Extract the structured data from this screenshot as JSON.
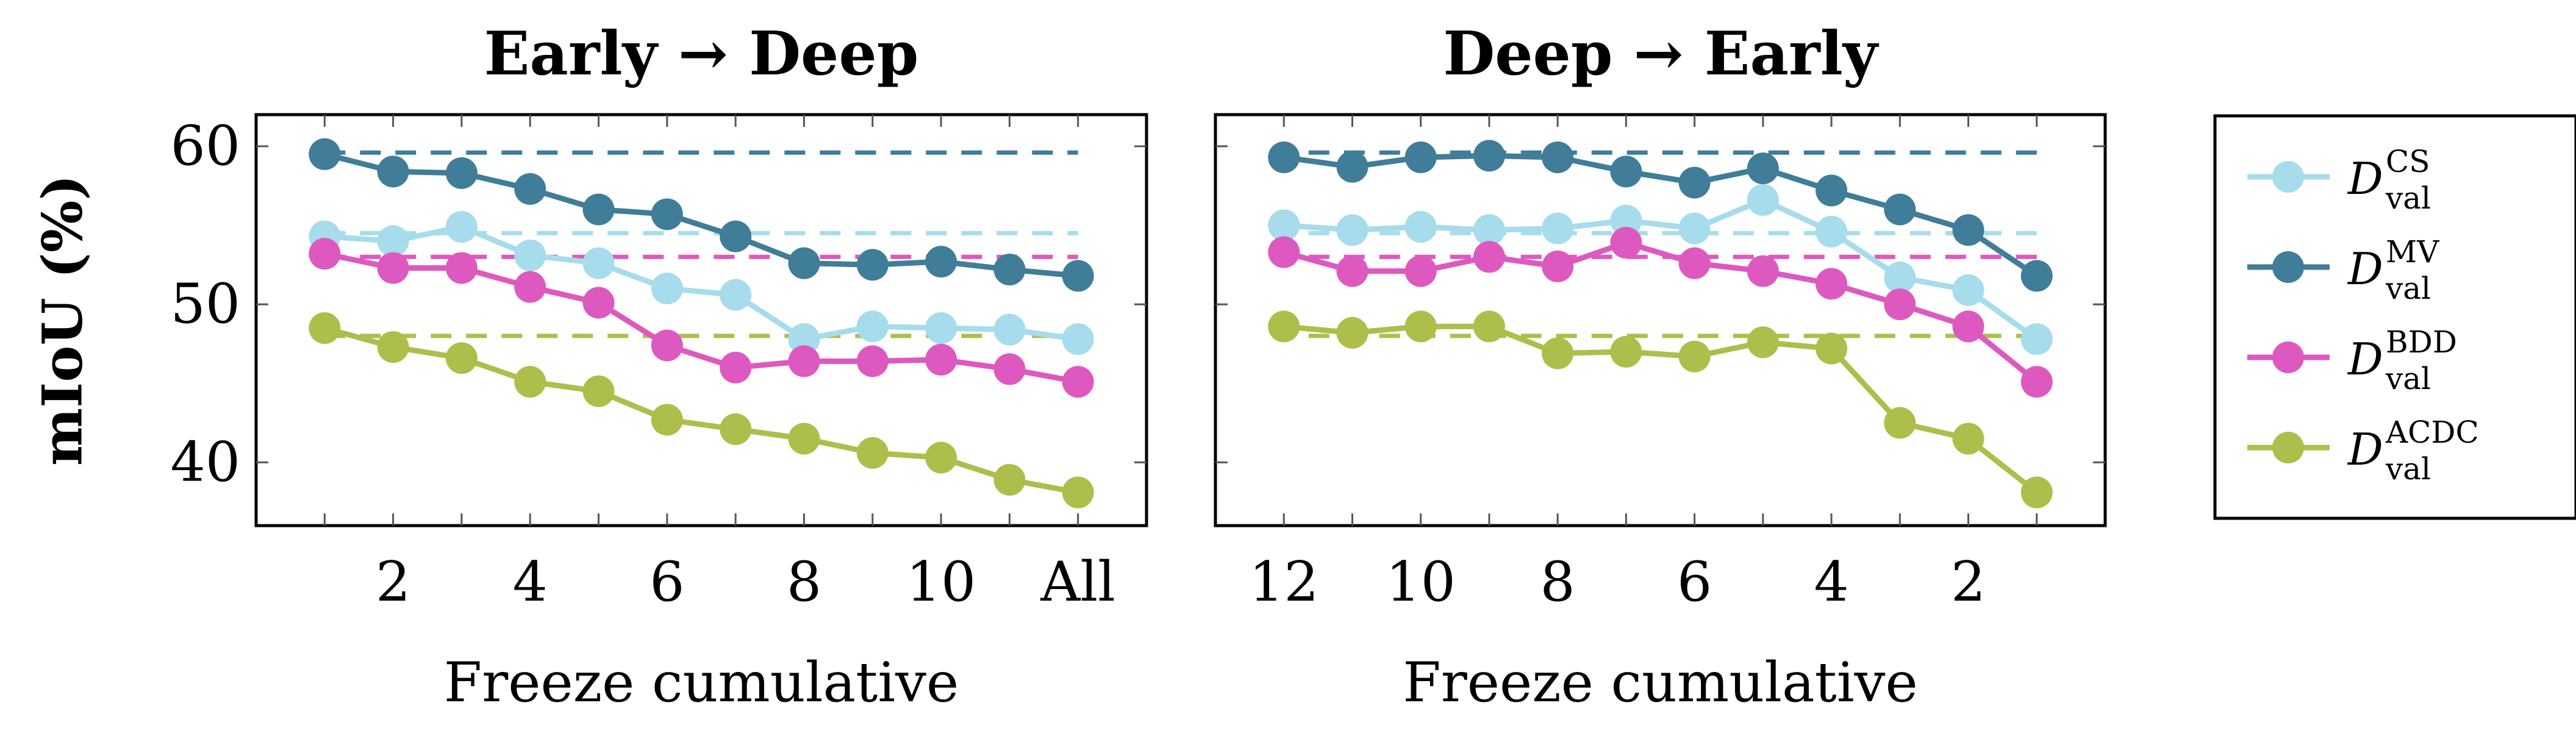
{
  "chart_data": [
    {
      "type": "line",
      "title": "Early → Deep",
      "xlabel": "Freeze cumulative",
      "ylabel": "mIoU (%)",
      "x_tick_labels": [
        "2",
        "4",
        "6",
        "8",
        "10",
        "All"
      ],
      "x": [
        1,
        2,
        3,
        4,
        5,
        6,
        7,
        8,
        9,
        10,
        11,
        12
      ],
      "xlim": [
        0,
        13
      ],
      "ylim": [
        36,
        62
      ],
      "y_ticks": [
        40,
        50,
        60
      ],
      "grid": false,
      "series": [
        {
          "name": "D_val^CS",
          "color": "#a6dceb",
          "baseline": 54.5,
          "values": [
            54.3,
            54.0,
            54.9,
            53.1,
            52.6,
            51.0,
            50.6,
            47.8,
            48.6,
            48.5,
            48.4,
            47.8
          ]
        },
        {
          "name": "D_val^MV",
          "color": "#3f7d99",
          "baseline": 59.6,
          "values": [
            59.5,
            58.4,
            58.3,
            57.3,
            56.0,
            55.7,
            54.3,
            52.6,
            52.5,
            52.7,
            52.2,
            51.8
          ]
        },
        {
          "name": "D_val^BDD",
          "color": "#de59bf",
          "baseline": 53.0,
          "values": [
            53.2,
            52.3,
            52.3,
            51.1,
            50.1,
            47.4,
            46.0,
            46.4,
            46.4,
            46.5,
            45.9,
            45.1
          ]
        },
        {
          "name": "D_val^ACDC",
          "color": "#adbf4a",
          "baseline": 48.0,
          "values": [
            48.5,
            47.3,
            46.6,
            45.1,
            44.5,
            42.7,
            42.1,
            41.5,
            40.6,
            40.3,
            38.9,
            38.1
          ]
        }
      ]
    },
    {
      "type": "line",
      "title": "Deep → Early",
      "xlabel": "Freeze cumulative",
      "ylabel": "",
      "x_tick_labels": [
        "12",
        "10",
        "8",
        "6",
        "4",
        "2"
      ],
      "x": [
        12,
        11,
        10,
        9,
        8,
        7,
        6,
        5,
        4,
        3,
        2,
        1
      ],
      "xlim": [
        13,
        0
      ],
      "ylim": [
        36,
        62
      ],
      "y_ticks": [
        40,
        50,
        60
      ],
      "grid": false,
      "series": [
        {
          "name": "D_val^CS",
          "color": "#a6dceb",
          "baseline": 54.5,
          "values": [
            55.0,
            54.7,
            54.9,
            54.7,
            54.8,
            55.3,
            54.8,
            56.6,
            54.6,
            51.7,
            50.9,
            47.8
          ]
        },
        {
          "name": "D_val^MV",
          "color": "#3f7d99",
          "baseline": 59.6,
          "values": [
            59.3,
            58.7,
            59.3,
            59.4,
            59.3,
            58.4,
            57.7,
            58.6,
            57.2,
            56.0,
            54.7,
            51.8
          ]
        },
        {
          "name": "D_val^BDD",
          "color": "#de59bf",
          "baseline": 53.0,
          "values": [
            53.3,
            52.1,
            52.1,
            53.0,
            52.4,
            53.9,
            52.6,
            52.1,
            51.3,
            50.0,
            48.6,
            45.1
          ]
        },
        {
          "name": "D_val^ACDC",
          "color": "#adbf4a",
          "baseline": 48.0,
          "values": [
            48.6,
            48.2,
            48.6,
            48.6,
            46.9,
            47.0,
            46.7,
            47.6,
            47.2,
            42.5,
            41.5,
            38.1
          ]
        }
      ]
    }
  ],
  "legend": {
    "placement": "right",
    "items": [
      {
        "symbol": "D",
        "sup": "CS",
        "sub": "val",
        "color": "#a6dceb"
      },
      {
        "symbol": "D",
        "sup": "MV",
        "sub": "val",
        "color": "#3f7d99"
      },
      {
        "symbol": "D",
        "sup": "BDD",
        "sub": "val",
        "color": "#de59bf"
      },
      {
        "symbol": "D",
        "sup": "ACDC",
        "sub": "val",
        "color": "#adbf4a"
      }
    ]
  }
}
